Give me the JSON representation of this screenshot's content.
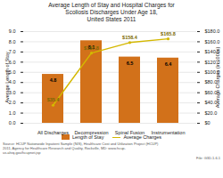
{
  "chart_data": {
    "type": "bar",
    "title": "Average Length of Stay and Hospital Charges for\nScoliosis Discharges Under Age 18,\nUnited States 2011",
    "categories": [
      "All Discharges",
      "Decompression",
      "Spinal Fusion",
      "Instrumentation"
    ],
    "series": [
      {
        "name": "Length of Stay",
        "type": "bar",
        "color": "#D2711A",
        "values": [
          4.8,
          8.1,
          6.5,
          6.4
        ]
      },
      {
        "name": "Average Charges",
        "type": "line",
        "axis": "y2",
        "color": "#D4B800",
        "marker": "circle",
        "values": [
          35.4,
          137.8,
          158.4,
          165.8
        ],
        "value_labels": [
          "$35.4",
          "$137.8",
          "$158.4",
          "$165.8"
        ]
      }
    ],
    "ylabel": "Average Length of Stay",
    "y2label": "Average Charges (in 1000s)",
    "ylim": [
      0,
      9.0
    ],
    "yticks": [
      {
        "value": 0.0,
        "label": "0.0"
      },
      {
        "value": 1.0,
        "label": "1.0"
      },
      {
        "value": 2.0,
        "label": "2.0"
      },
      {
        "value": 3.0,
        "label": "3.0"
      },
      {
        "value": 4.0,
        "label": "4.0"
      },
      {
        "value": 5.0,
        "label": "5.0"
      },
      {
        "value": 6.0,
        "label": "6.0"
      },
      {
        "value": 7.0,
        "label": "7.0"
      },
      {
        "value": 8.0,
        "label": "8.0"
      },
      {
        "value": 9.0,
        "label": "9.0"
      }
    ],
    "y2lim": [
      0,
      180.0
    ],
    "y2ticks": [
      {
        "value": 0,
        "label": "$0"
      },
      {
        "value": 20,
        "label": "$20.0"
      },
      {
        "value": 40,
        "label": "$40.0"
      },
      {
        "value": 60,
        "label": "$60.0"
      },
      {
        "value": 80,
        "label": "$80.0"
      },
      {
        "value": 100,
        "label": "$100.0"
      },
      {
        "value": 120,
        "label": "$120.0"
      },
      {
        "value": 140,
        "label": "$140.0"
      },
      {
        "value": 160,
        "label": "$160.0"
      },
      {
        "value": 180,
        "label": "$180.0"
      }
    ],
    "grid": true,
    "legend": "bottom",
    "data_labels": true,
    "annotations": [
      "Source: HCUP Nationwide Inpatient Sample (NIS), Healthcare Cost and Utilization Project (HCUP)\n2011, Agency for Healthcare Research and Quality, Rockville, MD: www.hcup-\nus.ahrq.gov/hcupnet.jsp",
      "File: G3D.1.6.1"
    ]
  }
}
